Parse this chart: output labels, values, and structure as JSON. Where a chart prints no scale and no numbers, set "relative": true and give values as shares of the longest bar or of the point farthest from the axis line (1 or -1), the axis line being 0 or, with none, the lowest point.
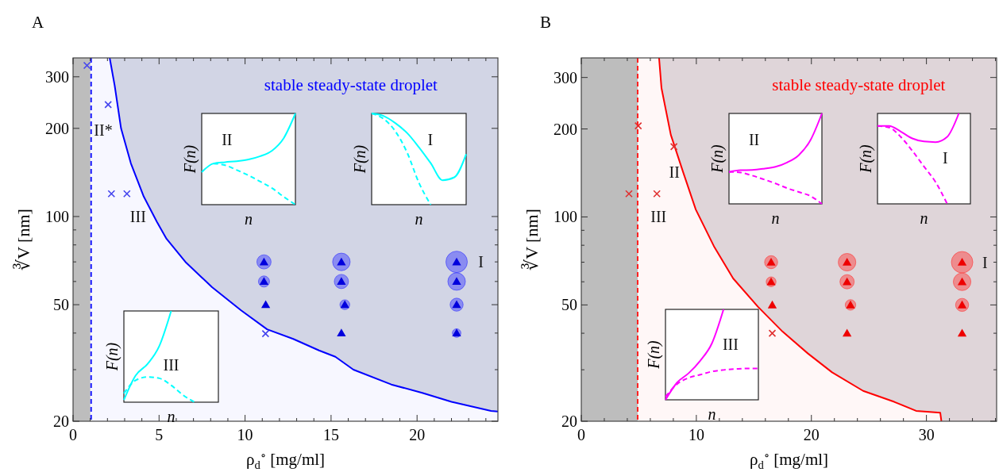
{
  "chart_data": [
    {
      "type": "scatter",
      "title": "A",
      "xlabel": "ρ$_{d}$$^{∘}$ [mg/ml]",
      "ylabel": "∛V [nm]",
      "xlim": [
        0,
        24.7
      ],
      "ylim": [
        20,
        348
      ],
      "log": "y",
      "xticks": [
        0,
        {
          "value": 1,
          "label": null
        },
        {
          "value": 2,
          "label": null
        },
        {
          "value": 3,
          "label": null
        },
        {
          "value": 4,
          "label": null
        },
        5,
        {
          "value": 6,
          "label": null
        },
        {
          "value": 7,
          "label": null
        },
        {
          "value": 8,
          "label": null
        },
        {
          "value": 9,
          "label": null
        },
        10,
        {
          "value": 11,
          "label": null
        },
        {
          "value": 12,
          "label": null
        },
        {
          "value": 13,
          "label": null
        },
        {
          "value": 14,
          "label": null
        },
        15,
        {
          "value": 16,
          "label": null
        },
        {
          "value": 17,
          "label": null
        },
        {
          "value": 18,
          "label": null
        },
        {
          "value": 19,
          "label": null
        },
        20,
        {
          "value": 21,
          "label": null
        },
        {
          "value": 22,
          "label": null
        },
        {
          "value": 23,
          "label": null
        },
        {
          "value": 24,
          "label": null
        }
      ],
      "yticks": [
        20,
        {
          "value": 30,
          "label": null
        },
        {
          "value": 40,
          "label": null
        },
        50,
        {
          "value": 60,
          "label": null
        },
        {
          "value": 70,
          "label": null
        },
        {
          "value": 80,
          "label": null
        },
        {
          "value": 90,
          "label": null
        },
        100,
        200,
        300
      ],
      "bands": [
        {
          "axis": "x",
          "from": 0,
          "to": 1,
          "color": "#bdbdbd"
        }
      ],
      "ref_lines": [
        {
          "axis": "x",
          "value": 1.05,
          "color": "#1a1aff",
          "line_style": "dashed"
        }
      ],
      "annotations": [
        "stable steady-state droplet",
        "II*",
        "III",
        "I"
      ],
      "series": [
        {
          "type": "line",
          "color": "#0000ff",
          "x": [
            2.13,
            2.42,
            2.79,
            3.36,
            4.11,
            4.87,
            5.43,
            6.57,
            8.08,
            9.77,
            11.28,
            12.8,
            14.3,
            15.25,
            16.3,
            18.5,
            20.3,
            22.0,
            24.3,
            24.7
          ],
          "values": [
            348,
            280,
            200,
            152,
            117,
            96,
            84,
            69.6,
            57.4,
            47.8,
            41.2,
            38.2,
            34.9,
            33.2,
            30.0,
            26.7,
            25.0,
            23.3,
            21.7,
            21.6
          ]
        },
        {
          "type": "bubble",
          "color": "#3333ff",
          "x": [
            11.1,
            11.1,
            15.6,
            15.6,
            15.8,
            22.3,
            22.3,
            22.3,
            22.3
          ],
          "values": [
            70,
            60,
            70,
            60,
            50,
            70,
            60,
            50,
            40
          ],
          "sizes": [
            0.44,
            0.27,
            0.67,
            0.44,
            0.21,
            1,
            0.67,
            0.37,
            0.16
          ]
        },
        {
          "type": "scatter",
          "marker": "triangle",
          "color": "#0000dd",
          "x": [
            11.1,
            11.1,
            11.2,
            15.6,
            15.6,
            15.8,
            15.6,
            22.3,
            22.3,
            22.3,
            22.3
          ],
          "values": [
            70,
            60,
            50,
            70,
            60,
            50,
            40,
            70,
            60,
            50,
            40
          ]
        },
        {
          "type": "scatter",
          "marker": "cross",
          "color": "#4444ee",
          "x": [
            0.81,
            2.04,
            2.23,
            3.13,
            11.19
          ],
          "values": [
            328,
            241,
            119.6,
            119.6,
            39.8
          ]
        }
      ]
    },
    {
      "type": "line",
      "relative": true,
      "xlabel": "n",
      "ylabel": "F(n)",
      "categories": [
        null,
        null,
        null,
        null,
        null,
        null,
        null,
        null,
        null
      ],
      "annotations": [
        "II"
      ],
      "series": [
        {
          "color": "#00ffff",
          "line_style": "solid",
          "values": [
            0.357,
            0.451,
            0.466,
            0.477,
            0.495,
            0.531,
            0.592,
            0.729,
            1
          ]
        },
        {
          "color": "#00ffff",
          "line_style": "dashed",
          "values": [
            null,
            0.451,
            0.433,
            0.379,
            0.321,
            0.253,
            0.181,
            0.087,
            0
          ]
        }
      ]
    },
    {
      "type": "line",
      "relative": true,
      "xlabel": "n",
      "ylabel": "F(n)",
      "categories": [
        null,
        null,
        null,
        null,
        null,
        null,
        null,
        null,
        null
      ],
      "annotations": [
        "I"
      ],
      "series": [
        {
          "color": "#00ffff",
          "line_style": "solid",
          "values": [
            1,
            0.973,
            0.895,
            0.786,
            0.63,
            0.455,
            0.268,
            0.3,
            0.553
          ]
        },
        {
          "color": "#00ffff",
          "line_style": "dashed",
          "values": [
            1,
            0.942,
            0.805,
            0.572,
            0.241,
            0,
            null,
            null,
            null
          ]
        }
      ]
    },
    {
      "type": "line",
      "relative": true,
      "xlabel": "n",
      "ylabel": "F(n)",
      "categories": [
        null,
        null,
        null,
        null,
        null,
        null,
        null,
        null,
        null
      ],
      "annotations": [
        "III"
      ],
      "series": [
        {
          "color": "#00ffff",
          "line_style": "solid",
          "values": [
            0.025,
            0.294,
            0.419,
            0.616,
            1,
            null,
            null,
            null,
            null
          ]
        },
        {
          "color": "#00ffff",
          "line_style": "dashed",
          "values": [
            0.097,
            0.24,
            0.276,
            0.262,
            0.186,
            0.079,
            0,
            null,
            null
          ]
        }
      ]
    },
    {
      "type": "scatter",
      "title": "B",
      "xlabel": "ρ$_{d}$$^{∘}$ [mg/ml]",
      "ylabel": "∛V [nm]",
      "xlim": [
        0,
        36.1
      ],
      "ylim": [
        20,
        350
      ],
      "log": "y",
      "xticks": [
        0,
        {
          "value": 2,
          "label": null
        },
        {
          "value": 4,
          "label": null
        },
        {
          "value": 6,
          "label": null
        },
        {
          "value": 8,
          "label": null
        },
        10,
        {
          "value": 12,
          "label": null
        },
        {
          "value": 14,
          "label": null
        },
        {
          "value": 16,
          "label": null
        },
        {
          "value": 18,
          "label": null
        },
        20,
        {
          "value": 22,
          "label": null
        },
        {
          "value": 24,
          "label": null
        },
        {
          "value": 26,
          "label": null
        },
        {
          "value": 28,
          "label": null
        },
        30,
        {
          "value": 32,
          "label": null
        },
        {
          "value": 34,
          "label": null
        },
        {
          "value": 36,
          "label": null
        }
      ],
      "yticks": [
        20,
        {
          "value": 30,
          "label": null
        },
        {
          "value": 40,
          "label": null
        },
        50,
        {
          "value": 60,
          "label": null
        },
        {
          "value": 70,
          "label": null
        },
        {
          "value": 80,
          "label": null
        },
        {
          "value": 90,
          "label": null
        },
        100,
        200,
        300
      ],
      "bands": [
        {
          "axis": "x",
          "from": 0,
          "to": 4.9,
          "color": "#bdbdbd"
        }
      ],
      "ref_lines": [
        {
          "axis": "x",
          "value": 4.9,
          "color": "#ff2020",
          "line_style": "dashed"
        }
      ],
      "annotations": [
        "stable steady-state droplet",
        "II",
        "III",
        "I"
      ],
      "series": [
        {
          "type": "line",
          "color": "#ff0000",
          "x": [
            6.76,
            6.97,
            7.78,
            8.86,
            9.95,
            11.57,
            13.2,
            15.35,
            17.5,
            19.7,
            21.8,
            24.5,
            27.2,
            29.1,
            31.2,
            31.3
          ],
          "values": [
            350,
            276,
            191,
            142,
            106,
            78.8,
            61.6,
            49.3,
            40.5,
            34.1,
            29.4,
            25.4,
            23.3,
            21.7,
            21.4,
            20
          ]
        },
        {
          "type": "bubble",
          "color": "#ff3333",
          "x": [
            16.5,
            16.5,
            23.1,
            23.1,
            23.4,
            33.1,
            33.1,
            33.1
          ],
          "values": [
            70,
            60,
            70,
            60,
            50,
            70,
            60,
            50
          ],
          "sizes": [
            0.37,
            0.21,
            0.67,
            0.44,
            0.24,
            1,
            0.67,
            0.37
          ]
        },
        {
          "type": "scatter",
          "marker": "triangle",
          "color": "#ee0000",
          "x": [
            16.5,
            16.5,
            16.6,
            23.1,
            23.1,
            23.4,
            23.1,
            33.1,
            33.1,
            33.1,
            33.1
          ],
          "values": [
            70,
            60,
            50,
            70,
            60,
            50,
            40,
            70,
            60,
            50,
            40
          ]
        },
        {
          "type": "scatter",
          "marker": "cross",
          "color": "#e03030",
          "x": [
            4.14,
            4.95,
            6.57,
            8.05,
            16.6
          ],
          "values": [
            120,
            205,
            120,
            174,
            40
          ]
        }
      ]
    },
    {
      "type": "line",
      "relative": true,
      "xlabel": "n",
      "ylabel": "F(n)",
      "categories": [
        null,
        null,
        null,
        null,
        null,
        null,
        null,
        null,
        null
      ],
      "annotations": [
        "II"
      ],
      "series": [
        {
          "color": "#ff00ff",
          "line_style": "solid",
          "values": [
            0.354,
            0.372,
            0.375,
            0.389,
            0.41,
            0.458,
            0.538,
            0.701,
            1
          ]
        },
        {
          "color": "#ff00ff",
          "line_style": "dashed",
          "values": [
            0.354,
            0.347,
            0.313,
            0.271,
            0.226,
            0.174,
            0.132,
            0.087,
            0
          ]
        }
      ]
    },
    {
      "type": "line",
      "relative": true,
      "xlabel": "n",
      "ylabel": "F(n)",
      "categories": [
        null,
        null,
        null,
        null,
        null,
        null,
        null,
        null,
        null
      ],
      "annotations": [
        "I"
      ],
      "series": [
        {
          "color": "#ff00ff",
          "line_style": "solid",
          "values": [
            0.862,
            0.862,
            0.8,
            0.724,
            0.69,
            0.683,
            0.741,
            1,
            null
          ]
        },
        {
          "color": "#ff00ff",
          "line_style": "dashed",
          "values": [
            0.862,
            0.845,
            0.741,
            0.586,
            0.414,
            0.241,
            0,
            null,
            null
          ]
        }
      ]
    },
    {
      "type": "line",
      "relative": true,
      "xlabel": "n",
      "ylabel": "F(n)",
      "categories": [
        null,
        null,
        null,
        null,
        null,
        null,
        null,
        null,
        null
      ],
      "annotations": [
        "III"
      ],
      "series": [
        {
          "color": "#ff00ff",
          "line_style": "solid",
          "values": [
            0,
            0.191,
            0.295,
            0.434,
            0.625,
            1,
            null,
            null,
            null
          ]
        },
        {
          "color": "#ff00ff",
          "line_style": "dashed",
          "values": [
            0.035,
            0.174,
            0.243,
            0.278,
            0.313,
            0.33,
            0.34,
            0.347,
            0.347
          ]
        }
      ]
    }
  ]
}
